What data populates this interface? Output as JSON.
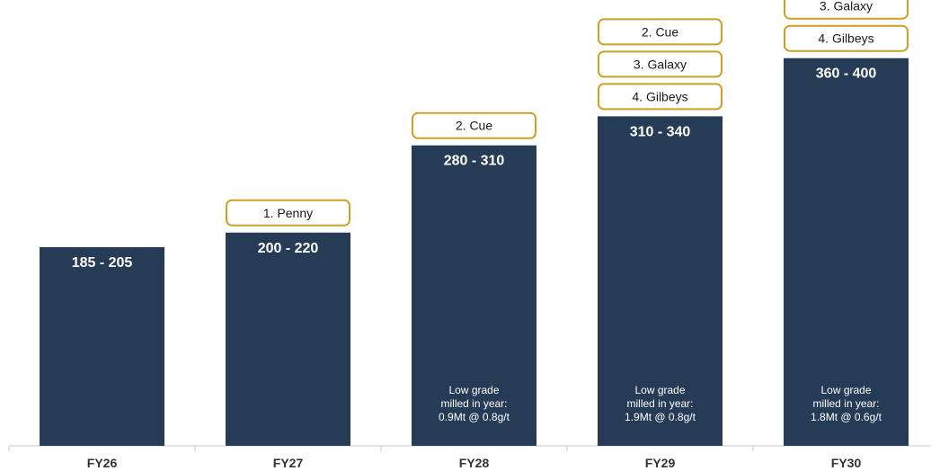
{
  "chart_data": {
    "type": "bar",
    "categories": [
      "FY26",
      "FY27",
      "FY28",
      "FY29",
      "FY30"
    ],
    "range_labels": [
      "185 - 205",
      "200  - 220",
      "280 - 310",
      "310 - 340",
      "360 - 400"
    ],
    "values": [
      205,
      220,
      310,
      340,
      400
    ],
    "ylim": [
      0,
      460
    ],
    "grid": false,
    "bar_color": "#263b56",
    "tag_border_color": "#c9a227",
    "annotations": [
      [],
      [
        "1. Penny"
      ],
      [
        "2. Cue"
      ],
      [
        "2. Cue",
        "3. Galaxy",
        "4. Gilbeys"
      ],
      [
        "3. Galaxy",
        "4. Gilbeys"
      ]
    ],
    "notes": [
      null,
      null,
      [
        "Low grade",
        "milled in year:",
        "0.9Mt @ 0.8g/t"
      ],
      [
        "Low grade",
        "milled in year:",
        "1.9Mt @ 0.8g/t"
      ],
      [
        "Low grade",
        "milled in year:",
        "1.8Mt @ 0.6g/t"
      ]
    ]
  }
}
